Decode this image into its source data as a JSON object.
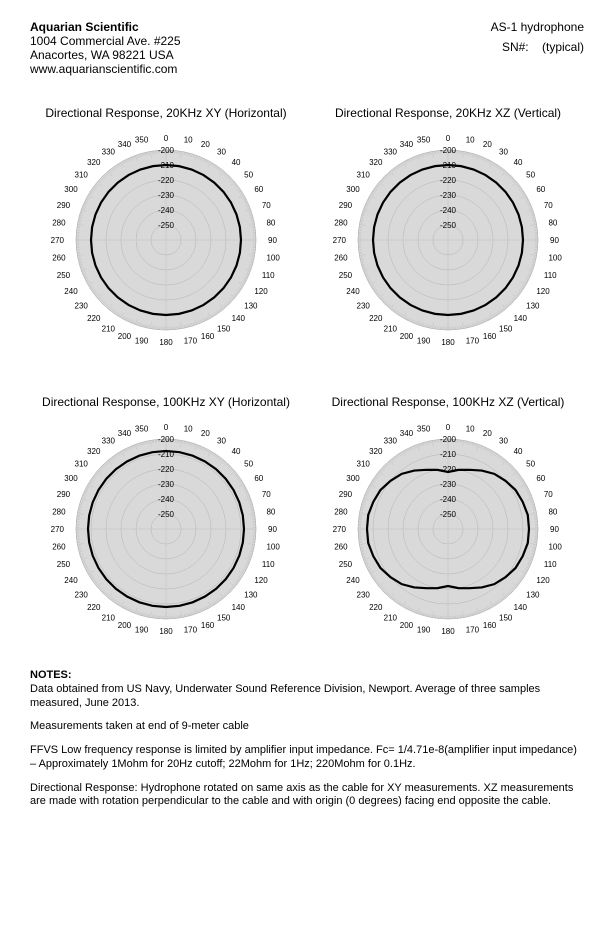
{
  "header": {
    "company": "Aquarian Scientific",
    "addr1": "1004 Commercial Ave. #225",
    "addr2": "Anacortes, WA 98221  USA",
    "url": "www.aquarianscientific.com",
    "product": "AS-1 hydrophone",
    "sn_label": "SN#:",
    "sn_value": "(typical)"
  },
  "polar_common": {
    "outer_radius": 90,
    "r_max": -200,
    "r_min": -260,
    "radial_labels": [
      -200,
      -210,
      -220,
      -230,
      -240,
      -250
    ],
    "angle_deg": [
      0,
      10,
      20,
      30,
      40,
      50,
      60,
      70,
      80,
      90,
      100,
      110,
      120,
      130,
      140,
      150,
      160,
      170,
      180,
      190,
      200,
      210,
      220,
      230,
      240,
      250,
      260,
      270,
      280,
      290,
      300,
      310,
      320,
      330,
      340,
      350
    ],
    "tick_color": "#c0c0c0",
    "fill_color": "#d9d9d9",
    "ring_color": "#b5b5b5",
    "background": "#ffffff",
    "data_color": "#000000",
    "data_width": 2.2
  },
  "charts": [
    {
      "title": "Directional Response, 20KHz XY (Horizontal)",
      "values": [
        -210,
        -210,
        -210,
        -210,
        -210,
        -210,
        -210,
        -210,
        -210,
        -210,
        -210,
        -210,
        -210,
        -210,
        -210,
        -210,
        -210,
        -210,
        -210,
        -210,
        -210,
        -210,
        -210,
        -210,
        -210,
        -210,
        -210,
        -210,
        -210,
        -210,
        -210,
        -210,
        -210,
        -210,
        -210,
        -210
      ]
    },
    {
      "title": "Directional Response, 20KHz XZ (Vertical)",
      "values": [
        -210,
        -210,
        -210,
        -210,
        -210,
        -210,
        -210,
        -210,
        -210,
        -210,
        -210,
        -210,
        -210,
        -210,
        -210,
        -210,
        -210,
        -210,
        -210,
        -210,
        -210,
        -210,
        -210,
        -210,
        -210,
        -210,
        -210,
        -210,
        -210,
        -210,
        -210,
        -210,
        -210,
        -210,
        -210,
        -210
      ]
    },
    {
      "title": "Directional Response, 100KHz XY (Horizontal)",
      "values": [
        -208,
        -208,
        -208,
        -208,
        -208,
        -208,
        -208,
        -208,
        -208,
        -208,
        -208,
        -208,
        -208,
        -208,
        -208,
        -208,
        -208,
        -208,
        -208,
        -208,
        -208,
        -208,
        -208,
        -208,
        -208,
        -208,
        -208,
        -208,
        -208,
        -208,
        -208,
        -208,
        -208,
        -208,
        -208,
        -208
      ]
    },
    {
      "title": "Directional Response, 100KHz XZ (Vertical)",
      "values": [
        -222,
        -220,
        -218,
        -215,
        -212,
        -210,
        -208,
        -207,
        -206,
        -206,
        -206,
        -207,
        -208,
        -210,
        -212,
        -215,
        -218,
        -220,
        -222,
        -220,
        -218,
        -215,
        -212,
        -210,
        -208,
        -207,
        -206,
        -206,
        -206,
        -207,
        -208,
        -210,
        -212,
        -215,
        -218,
        -220
      ]
    }
  ],
  "notes": {
    "heading": "NOTES:",
    "p1": "Data obtained from US Navy, Underwater Sound Reference Division, Newport.  Average of three samples measured, June 2013.",
    "p2": "Measurements taken at end of 9-meter cable",
    "p3": "FFVS Low frequency response is limited by amplifier input impedance. Fc= 1/4.71e-8(amplifier input impedance) – Approximately  1Mohm for 20Hz cutoff; 22Mohm for 1Hz; 220Mohm for 0.1Hz.",
    "p4": "Directional Response:  Hydrophone rotated on same axis as the cable for XY measurements.  XZ measurements are made with rotation perpendicular to the cable and with origin (0 degrees) facing end opposite the cable."
  }
}
